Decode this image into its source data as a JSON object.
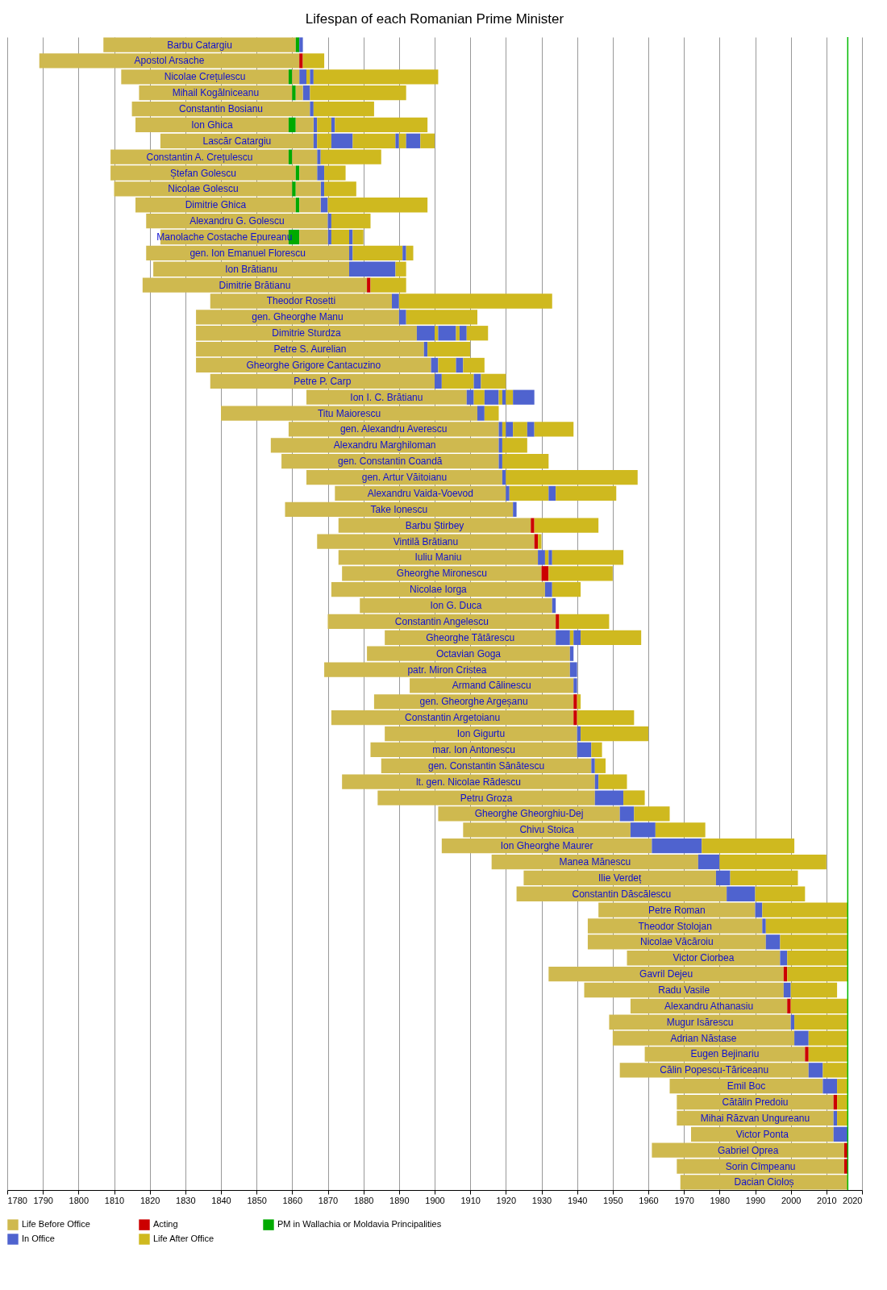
{
  "chart_data": {
    "type": "bar",
    "title": "Lifespan of each Romanian Prime Minister",
    "orientation": "horizontal",
    "categories": [
      "Barbu Catargiu",
      "Apostol Arsache",
      "Nicolae Crețulescu",
      "Mihail Kogălniceanu",
      "Constantin Bosianu",
      "Ion Ghica",
      "Lascăr Catargiu",
      "Constantin A. Crețulescu",
      "Ștefan Golescu",
      "Nicolae Golescu",
      "Dimitrie Ghica",
      "Alexandru G. Golescu",
      "Manolache Costache Epureanu",
      "gen. Ion Emanuel Florescu",
      "Ion Brătianu",
      "Dimitrie Brătianu",
      "Theodor Rosetti",
      "gen. Gheorghe Manu",
      "Dimitrie Sturdza",
      "Petre S. Aurelian",
      "Gheorghe Grigore Cantacuzino",
      "Petre P. Carp",
      "Ion I. C. Brătianu",
      "Titu Maiorescu",
      "gen. Alexandru Averescu",
      "Alexandru Marghiloman",
      "gen. Constantin Coandă",
      "gen. Artur Văitoianu",
      "Alexandru Vaida-Voevod",
      "Take Ionescu",
      "Barbu Știrbey",
      "Vintilă Brătianu",
      "Iuliu Maniu",
      "Gheorghe Mironescu",
      "Nicolae Iorga",
      "Ion G. Duca",
      "Constantin Angelescu",
      "Gheorghe Tătărescu",
      "Octavian Goga",
      "patr. Miron Cristea",
      "Armand Călinescu",
      "gen. Gheorghe Argeșanu",
      "Constantin Argetoianu",
      "Ion Gigurtu",
      "mar. Ion Antonescu",
      "gen. Constantin Sănătescu",
      "lt. gen. Nicolae Rădescu",
      "Petru Groza",
      "Gheorghe Gheorghiu-Dej",
      "Chivu Stoica",
      "Ion Gheorghe Maurer",
      "Manea Mănescu",
      "Ilie Verdeț",
      "Constantin Dăscălescu",
      "Petre Roman",
      "Theodor Stolojan",
      "Nicolae Văcăroiu",
      "Victor Ciorbea",
      "Gavril Dejeu",
      "Radu Vasile",
      "Alexandru Athanasiu",
      "Mugur Isărescu",
      "Adrian Năstase",
      "Eugen Bejinariu",
      "Călin Popescu-Tăriceanu",
      "Emil Boc",
      "Cătălin Predoiu",
      "Mihai Răzvan Ungureanu",
      "Victor Ponta",
      "Gabriel Oprea",
      "Sorin Cîmpeanu",
      "Dacian Cioloș"
    ],
    "series": [
      {
        "name": "Life Before Office",
        "color": "#cfb94f",
        "base": [
          1807,
          1789,
          1812,
          1817,
          1815,
          1816,
          1823,
          1809,
          1809,
          1810,
          1816,
          1819,
          1823,
          1819,
          1821,
          1818,
          1837,
          1833,
          1833,
          1833,
          1833,
          1837,
          1864,
          1840,
          1859,
          1854,
          1857,
          1864,
          1872,
          1858,
          1873,
          1867,
          1873,
          1874,
          1871,
          1879,
          1870,
          1886,
          1881,
          1869,
          1893,
          1883,
          1871,
          1886,
          1882,
          1885,
          1874,
          1884,
          1901,
          1908,
          1902,
          1916,
          1925,
          1923,
          1946,
          1943,
          1943,
          1954,
          1932,
          1942,
          1955,
          1949,
          1950,
          1959,
          1952,
          1966,
          1968,
          1968,
          1972,
          1961,
          1968,
          1969
        ],
        "values": [
          54,
          73,
          47,
          43,
          50,
          43,
          43,
          50,
          52,
          50,
          45,
          51,
          36,
          57,
          55,
          63,
          51,
          57,
          62,
          64,
          66,
          63,
          45,
          72,
          59,
          64,
          61,
          55,
          48,
          64,
          54,
          61,
          56,
          56,
          60,
          54,
          64,
          48,
          57,
          69,
          46,
          56,
          68,
          54,
          58,
          59,
          71,
          61,
          51,
          47,
          59,
          58,
          54,
          59,
          44,
          49,
          50,
          43,
          66,
          56,
          44,
          51,
          51,
          45,
          53,
          43,
          44,
          44,
          40,
          54,
          47,
          47
        ]
      },
      {
        "name": "Acting",
        "color": "#cc0000",
        "base": [
          null,
          1862,
          null,
          null,
          null,
          null,
          null,
          null,
          null,
          null,
          null,
          null,
          null,
          null,
          null,
          1881,
          null,
          null,
          null,
          null,
          null,
          null,
          null,
          null,
          null,
          null,
          null,
          null,
          null,
          null,
          1927,
          1928,
          null,
          1930,
          null,
          null,
          1934,
          null,
          null,
          null,
          null,
          1939,
          1939,
          null,
          null,
          null,
          null,
          null,
          null,
          null,
          null,
          null,
          null,
          null,
          null,
          null,
          null,
          null,
          1998,
          null,
          1999,
          null,
          null,
          2004,
          null,
          null,
          2012,
          null,
          null,
          2015,
          2015,
          null
        ],
        "values": [
          null,
          1,
          null,
          null,
          null,
          null,
          null,
          null,
          null,
          null,
          null,
          null,
          null,
          null,
          null,
          1,
          null,
          null,
          null,
          null,
          null,
          null,
          null,
          null,
          null,
          null,
          null,
          null,
          null,
          null,
          1,
          1,
          null,
          2,
          null,
          null,
          1,
          null,
          null,
          null,
          null,
          1,
          1,
          null,
          null,
          null,
          null,
          null,
          null,
          null,
          null,
          null,
          null,
          null,
          null,
          null,
          null,
          null,
          1,
          null,
          1,
          null,
          null,
          1,
          null,
          null,
          1,
          null,
          null,
          1,
          1,
          null
        ]
      },
      {
        "name": "PM in Wallachia or Moldavia Principalities",
        "color": "#00aa00",
        "base": [
          1861,
          null,
          1859,
          1860,
          null,
          1859,
          null,
          1859,
          1861,
          1860,
          1861,
          null,
          1859,
          null,
          null,
          null,
          null,
          null,
          null,
          null,
          null,
          null,
          null,
          null,
          null,
          null,
          null,
          null,
          null,
          null,
          null,
          null,
          null,
          null,
          null,
          null,
          null,
          null,
          null,
          null,
          null,
          null,
          null,
          null,
          null,
          null,
          null,
          null,
          null,
          null,
          null,
          null,
          null,
          null,
          null,
          null,
          null,
          null,
          null,
          null,
          null,
          null,
          null,
          null,
          null,
          null,
          null,
          null,
          null,
          null,
          null,
          null
        ],
        "values": [
          1,
          null,
          1,
          1,
          null,
          2,
          null,
          1,
          1,
          1,
          1,
          null,
          3,
          null,
          null,
          null,
          null,
          null,
          null,
          null,
          null,
          null,
          null,
          null,
          null,
          null,
          null,
          null,
          null,
          null,
          null,
          null,
          null,
          null,
          null,
          null,
          null,
          null,
          null,
          null,
          null,
          null,
          null,
          null,
          null,
          null,
          null,
          null,
          null,
          null,
          null,
          null,
          null,
          null,
          null,
          null,
          null,
          null,
          null,
          null,
          null,
          null,
          null,
          null,
          null,
          null,
          null,
          null,
          null,
          null,
          null,
          null
        ]
      },
      {
        "name": "In Office",
        "color": "#4f63cf",
        "base": [
          1862,
          null,
          1862,
          1863,
          1865,
          1866,
          1866,
          1867,
          1867,
          1868,
          1868,
          1870,
          1870,
          1876,
          1876,
          null,
          1888,
          1890,
          1895,
          1897,
          1899,
          1900,
          1909,
          1912,
          1918,
          1918,
          1918,
          1919,
          1920,
          1922,
          null,
          null,
          1929,
          null,
          1931,
          1933,
          null,
          1934,
          1938,
          1938,
          1939,
          null,
          null,
          1940,
          1940,
          1944,
          1945,
          1945,
          1952,
          1955,
          1961,
          1974,
          1979,
          1982,
          1990,
          1992,
          1993,
          1997,
          null,
          1998,
          null,
          2000,
          2001,
          null,
          2005,
          2009,
          null,
          2012,
          2012,
          null,
          null,
          null
        ],
        "values": [
          1,
          null,
          2,
          2,
          1,
          1,
          1,
          1,
          2,
          1,
          2,
          1,
          1,
          1,
          13,
          null,
          2,
          2,
          5,
          1,
          2,
          2,
          2,
          2,
          1,
          1,
          1,
          1,
          1,
          1,
          null,
          null,
          2,
          null,
          2,
          1,
          null,
          4,
          1,
          2,
          1,
          null,
          null,
          1,
          4,
          1,
          1,
          8,
          4,
          7,
          14,
          6,
          4,
          8,
          2,
          1,
          4,
          2,
          null,
          2,
          null,
          1,
          4,
          null,
          4,
          4,
          null,
          1,
          4,
          null,
          null,
          null
        ]
      },
      {
        "name": "Life After Office",
        "color": "#cfb91f",
        "base": [
          null,
          1863,
          1864,
          1865,
          1866,
          1867,
          1867,
          1868,
          1869,
          1869,
          1870,
          1871,
          1871,
          1877,
          1889,
          1882,
          1890,
          1892,
          1900,
          1898,
          1901,
          1902,
          1911,
          1914,
          1919,
          1919,
          1919,
          1920,
          1921,
          null,
          1928,
          1929,
          1931,
          1932,
          1933,
          null,
          1935,
          1938,
          null,
          null,
          null,
          1940,
          1940,
          1941,
          1944,
          1945,
          1946,
          1953,
          1956,
          1962,
          1975,
          1980,
          1983,
          1990,
          1992,
          1993,
          1997,
          1999,
          1999,
          2000,
          2000,
          2001,
          2005,
          2005,
          2009,
          2013,
          2013,
          2013,
          null,
          null,
          null,
          null
        ],
        "values": [
          null,
          6,
          1,
          27,
          17,
          4,
          4,
          17,
          6,
          9,
          28,
          11,
          5,
          14,
          3,
          10,
          43,
          20,
          1,
          12,
          5,
          9,
          3,
          4,
          1,
          7,
          13,
          37,
          11,
          null,
          18,
          1,
          1,
          18,
          8,
          null,
          14,
          1,
          null,
          null,
          null,
          1,
          16,
          19,
          3,
          3,
          8,
          6,
          10,
          14,
          26,
          30,
          19,
          14,
          24,
          23,
          19,
          17,
          17,
          13,
          16,
          15,
          11,
          11,
          7,
          3,
          3,
          3,
          null,
          null,
          null,
          null
        ]
      },
      {
        "color": "#cfb94f",
        "base": [
          null,
          null,
          1860,
          1861,
          null,
          1861,
          null,
          1860,
          1862,
          1861,
          1862,
          null,
          1862,
          null,
          null,
          null,
          null,
          null,
          null,
          null,
          null,
          null,
          null,
          null,
          null,
          null,
          null,
          null,
          null,
          null,
          null,
          null,
          null,
          null,
          null,
          null,
          null,
          null,
          null,
          null,
          null,
          null,
          null,
          null,
          null,
          null,
          null,
          null,
          null,
          null,
          null,
          null,
          null,
          null,
          null,
          null,
          null,
          null,
          null,
          null,
          null,
          null,
          null,
          null,
          null,
          null,
          null,
          null,
          null,
          null,
          null,
          null
        ],
        "values": [
          null,
          null,
          2,
          2,
          null,
          5,
          null,
          7,
          5,
          7,
          6,
          null,
          8,
          null,
          null,
          null,
          null,
          null,
          null,
          null,
          null,
          null,
          null,
          null,
          null,
          null,
          null,
          null,
          null,
          null,
          null,
          null,
          null,
          null,
          null,
          null,
          null,
          null,
          null,
          null,
          null,
          null,
          null,
          null,
          null,
          null,
          null,
          null,
          null,
          null,
          null,
          null,
          null,
          null,
          null,
          null,
          null,
          null,
          null,
          null,
          null,
          null,
          null,
          null,
          null,
          null,
          null,
          null,
          null,
          null,
          null,
          null
        ]
      },
      {
        "color": "#4f63cf",
        "base": [
          null,
          null,
          1865,
          null,
          null,
          1871,
          1871,
          null,
          null,
          null,
          null,
          null,
          1876,
          1891,
          null,
          null,
          null,
          null,
          1901,
          null,
          1906,
          1911,
          1914,
          null,
          1920,
          null,
          null,
          null,
          1932,
          null,
          null,
          null,
          1932,
          null,
          null,
          null,
          null,
          1939,
          null,
          null,
          null,
          null,
          null,
          null,
          null,
          null,
          null,
          null,
          null,
          null,
          null,
          null,
          null,
          null,
          null,
          null,
          null,
          null,
          null,
          null,
          null,
          null,
          null,
          null,
          null,
          null,
          null,
          null,
          null,
          null,
          null,
          null
        ],
        "values": [
          null,
          null,
          1,
          null,
          null,
          1,
          6,
          null,
          null,
          null,
          null,
          null,
          1,
          1,
          null,
          null,
          null,
          null,
          5,
          null,
          2,
          2,
          4,
          null,
          2,
          null,
          null,
          null,
          2,
          null,
          null,
          null,
          1,
          null,
          null,
          null,
          null,
          2,
          null,
          null,
          null,
          null,
          null,
          null,
          null,
          null,
          null,
          null,
          null,
          null,
          null,
          null,
          null,
          null,
          null,
          null,
          null,
          null,
          null,
          null,
          null,
          null,
          null,
          null,
          null,
          null,
          null,
          null,
          null,
          null,
          null,
          null
        ]
      },
      {
        "color": "#cfb91f",
        "base": [
          null,
          null,
          1866,
          null,
          null,
          1872,
          1877,
          null,
          null,
          null,
          null,
          null,
          1877,
          1892,
          null,
          null,
          null,
          null,
          1906,
          null,
          1908,
          1913,
          1918,
          null,
          1922,
          null,
          null,
          null,
          1934,
          null,
          null,
          null,
          1933,
          null,
          null,
          null,
          null,
          1941,
          null,
          null,
          null,
          null,
          null,
          null,
          null,
          null,
          null,
          null,
          null,
          null,
          null,
          null,
          null,
          null,
          null,
          null,
          null,
          null,
          null,
          null,
          null,
          null,
          null,
          null,
          null,
          null,
          null,
          null,
          null,
          null,
          null,
          null
        ],
        "values": [
          null,
          null,
          35,
          null,
          null,
          26,
          12,
          null,
          null,
          null,
          null,
          null,
          3,
          2,
          null,
          null,
          null,
          null,
          1,
          null,
          6,
          7,
          1,
          null,
          4,
          null,
          null,
          null,
          17,
          null,
          null,
          null,
          20,
          null,
          null,
          null,
          null,
          17,
          null,
          null,
          null,
          null,
          null,
          null,
          null,
          null,
          null,
          null,
          null,
          null,
          null,
          null,
          null,
          null,
          null,
          null,
          null,
          null,
          null,
          null,
          null,
          null,
          null,
          null,
          null,
          null,
          null,
          null,
          null,
          null,
          null,
          null
        ]
      },
      {
        "color": "#4f63cf",
        "base": [
          null,
          null,
          null,
          null,
          null,
          null,
          1889,
          null,
          null,
          null,
          null,
          null,
          null,
          null,
          null,
          null,
          null,
          null,
          1907,
          null,
          null,
          null,
          1919,
          null,
          1926,
          null,
          null,
          null,
          null,
          null,
          null,
          null,
          null,
          null,
          null,
          null,
          null,
          null,
          null,
          null,
          null,
          null,
          null,
          null,
          null,
          null,
          null,
          null,
          null,
          null,
          null,
          null,
          null,
          null,
          null,
          null,
          null,
          null,
          null,
          null,
          null,
          null,
          null,
          null,
          null,
          null,
          null,
          null,
          null,
          null,
          null,
          null
        ],
        "values": [
          null,
          null,
          null,
          null,
          null,
          null,
          1,
          null,
          null,
          null,
          null,
          null,
          null,
          null,
          null,
          null,
          null,
          null,
          2,
          null,
          null,
          null,
          1,
          null,
          2,
          null,
          null,
          null,
          null,
          null,
          null,
          null,
          null,
          null,
          null,
          null,
          null,
          null,
          null,
          null,
          null,
          null,
          null,
          null,
          null,
          null,
          null,
          null,
          null,
          null,
          null,
          null,
          null,
          null,
          null,
          null,
          null,
          null,
          null,
          null,
          null,
          null,
          null,
          null,
          null,
          null,
          null,
          null,
          null,
          null,
          null,
          null
        ]
      },
      {
        "color": "#cfb91f",
        "base": [
          null,
          null,
          null,
          null,
          null,
          null,
          1890,
          null,
          null,
          null,
          null,
          null,
          null,
          null,
          null,
          null,
          null,
          null,
          1909,
          null,
          null,
          null,
          1920,
          null,
          1928,
          null,
          null,
          null,
          null,
          null,
          null,
          null,
          null,
          null,
          null,
          null,
          null,
          null,
          null,
          null,
          null,
          null,
          null,
          null,
          null,
          null,
          null,
          null,
          null,
          null,
          null,
          null,
          null,
          null,
          null,
          null,
          null,
          null,
          null,
          null,
          null,
          null,
          null,
          null,
          null,
          null,
          null,
          null,
          null,
          null,
          null,
          null
        ],
        "values": [
          null,
          null,
          null,
          null,
          null,
          null,
          2,
          null,
          null,
          null,
          null,
          null,
          null,
          null,
          null,
          null,
          null,
          null,
          6,
          null,
          null,
          null,
          2,
          null,
          11,
          null,
          null,
          null,
          null,
          null,
          null,
          null,
          null,
          null,
          null,
          null,
          null,
          null,
          null,
          null,
          null,
          null,
          null,
          null,
          null,
          null,
          null,
          null,
          null,
          null,
          null,
          null,
          null,
          null,
          null,
          null,
          null,
          null,
          null,
          null,
          null,
          null,
          null,
          null,
          null,
          null,
          null,
          null,
          null,
          null,
          null,
          null
        ]
      },
      {
        "color": "#4f63cf",
        "base": [
          null,
          null,
          null,
          null,
          null,
          null,
          1892,
          null,
          null,
          null,
          null,
          null,
          null,
          null,
          null,
          null,
          null,
          null,
          null,
          null,
          null,
          null,
          1922,
          null,
          null,
          null,
          null,
          null,
          null,
          null,
          null,
          null,
          null,
          null,
          null,
          null,
          null,
          null,
          null,
          null,
          null,
          null,
          null,
          null,
          null,
          null,
          null,
          null,
          null,
          null,
          null,
          null,
          null,
          null,
          null,
          null,
          null,
          null,
          null,
          null,
          null,
          null,
          null,
          null,
          null,
          null,
          null,
          null,
          null,
          null,
          null,
          null
        ],
        "values": [
          null,
          null,
          null,
          null,
          null,
          null,
          4,
          null,
          null,
          null,
          null,
          null,
          null,
          null,
          null,
          null,
          null,
          null,
          null,
          null,
          null,
          null,
          6,
          null,
          null,
          null,
          null,
          null,
          null,
          null,
          null,
          null,
          null,
          null,
          null,
          null,
          null,
          null,
          null,
          null,
          null,
          null,
          null,
          null,
          null,
          null,
          null,
          null,
          null,
          null,
          null,
          null,
          null,
          null,
          null,
          null,
          null,
          null,
          null,
          null,
          null,
          null,
          null,
          null,
          null,
          null,
          null,
          null,
          null,
          null,
          null,
          null
        ]
      },
      {
        "color": "#cfb91f",
        "base": [
          null,
          null,
          null,
          null,
          null,
          null,
          1896,
          null,
          null,
          null,
          null,
          null,
          null,
          null,
          null,
          null,
          null,
          null,
          null,
          null,
          null,
          null,
          null,
          null,
          null,
          null,
          null,
          null,
          null,
          null,
          null,
          null,
          null,
          null,
          null,
          null,
          null,
          null,
          null,
          null,
          null,
          null,
          null,
          null,
          null,
          null,
          null,
          null,
          null,
          null,
          null,
          null,
          null,
          null,
          null,
          null,
          null,
          null,
          null,
          null,
          null,
          null,
          null,
          null,
          null,
          null,
          null,
          null,
          null,
          null,
          null,
          null
        ],
        "values": [
          null,
          null,
          null,
          null,
          null,
          null,
          4,
          null,
          null,
          null,
          null,
          null,
          null,
          null,
          null,
          null,
          null,
          null,
          null,
          null,
          null,
          null,
          null,
          null,
          null,
          null,
          null,
          null,
          null,
          null,
          null,
          null,
          null,
          null,
          null,
          null,
          null,
          null,
          null,
          null,
          null,
          null,
          null,
          null,
          null,
          null,
          null,
          null,
          null,
          null,
          null,
          null,
          null,
          null,
          null,
          null,
          null,
          null,
          null,
          null,
          null,
          null,
          null,
          null,
          null,
          null,
          null,
          null,
          null,
          null,
          null,
          null
        ]
      }
    ],
    "xlim": [
      1780,
      2020
    ],
    "xticks": [
      1780,
      1790,
      1800,
      1810,
      1820,
      1830,
      1840,
      1850,
      1860,
      1870,
      1880,
      1890,
      1900,
      1910,
      1920,
      1930,
      1940,
      1950,
      1960,
      1970,
      1980,
      1990,
      2000,
      2010,
      2020
    ],
    "grid": "x",
    "legend": "bottom left",
    "tick_labels": "x",
    "ref_lines": [
      {
        "axis": "x",
        "value": 2016,
        "color": "#00bb00"
      }
    ]
  }
}
